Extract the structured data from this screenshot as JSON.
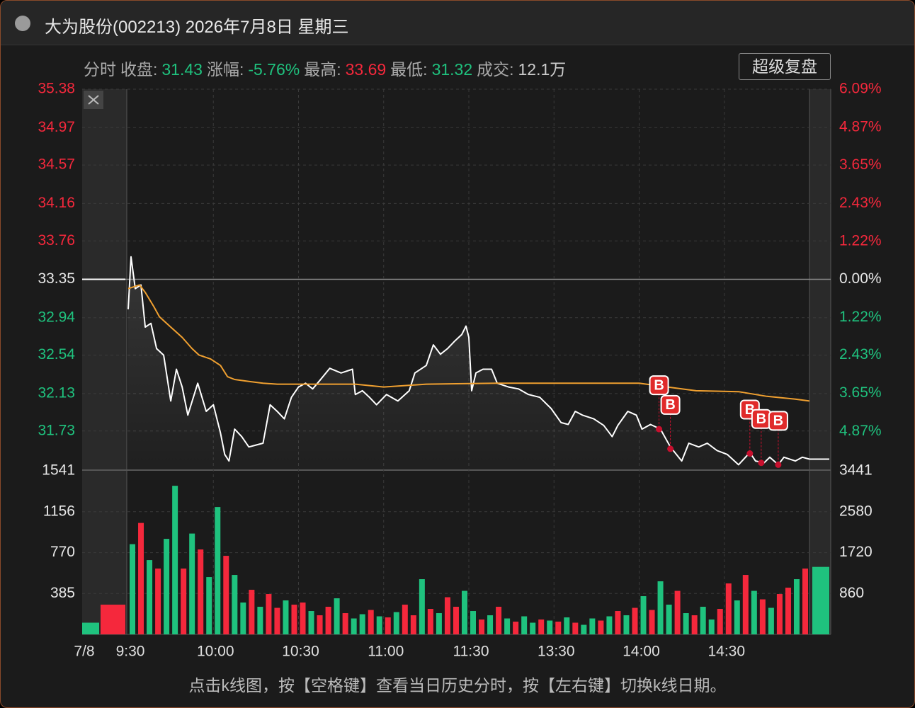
{
  "window": {
    "title": "大为股份(002213) 2026年7月8日 星期三",
    "button": "超级复盘",
    "footer": "点击k线图，按【空格键】查看当日历史分时，按【左右键】切换k线日期。",
    "info": [
      {
        "label": "分时"
      },
      {
        "label": "收盘:",
        "value": "31.43",
        "color": "#1fc27e"
      },
      {
        "label": "涨幅:",
        "value": "-5.76%",
        "color": "#1fc27e"
      },
      {
        "label": "最高:",
        "value": "33.69",
        "color": "#f5283c"
      },
      {
        "label": "最低:",
        "value": "31.32",
        "color": "#1fc27e"
      },
      {
        "label": "成交:",
        "value": "12.1万",
        "color": "#cccccc"
      }
    ]
  },
  "chart_data": {
    "type": "line",
    "date_label": "7/8",
    "prev_close": 33.35,
    "xlim": [
      0,
      240
    ],
    "xticks": [
      {
        "value": 0,
        "label": "9:30"
      },
      {
        "value": 30,
        "label": "10:00"
      },
      {
        "value": 60,
        "label": "10:30"
      },
      {
        "value": 90,
        "label": "11:00"
      },
      {
        "value": 120,
        "label": "11:30"
      },
      {
        "value": 150,
        "label": "13:30"
      },
      {
        "value": 180,
        "label": "14:00"
      },
      {
        "value": 210,
        "label": "14:30"
      }
    ],
    "ylim": [
      31.32,
      35.38
    ],
    "yticks": [
      35.38,
      34.97,
      34.57,
      34.16,
      33.76,
      33.35,
      32.94,
      32.54,
      32.13,
      31.73
    ],
    "y2lim": [
      -6.09,
      6.09
    ],
    "y2ticks": [
      {
        "value": 6.09,
        "label": "6.09%"
      },
      {
        "value": 4.87,
        "label": "4.87%"
      },
      {
        "value": 3.65,
        "label": "3.65%"
      },
      {
        "value": 2.43,
        "label": "2.43%"
      },
      {
        "value": 1.22,
        "label": "1.22%"
      },
      {
        "value": 0,
        "label": "0.00%"
      },
      {
        "value": -1.22,
        "label": "1.22%"
      },
      {
        "value": -2.43,
        "label": "2.43%"
      },
      {
        "value": -3.65,
        "label": "3.65%"
      },
      {
        "value": -4.87,
        "label": "4.87%"
      }
    ],
    "grid": true,
    "series": [
      {
        "color": "#ffffff",
        "x": [
          0,
          1,
          2.5,
          4.5,
          6,
          8,
          10,
          12.5,
          15,
          17,
          19,
          21,
          24.5,
          27.5,
          30,
          32.5,
          34,
          35.5,
          37.5,
          40,
          42.5,
          45,
          47.5,
          50,
          52.5,
          55,
          57.5,
          60,
          62.5,
          65,
          67.5,
          71,
          75,
          79,
          80,
          82.5,
          85,
          87.5,
          91,
          95,
          99,
          101,
          105,
          107.5,
          110,
          112.5,
          115,
          117.5,
          119,
          120,
          121,
          122.5,
          125,
          128,
          130,
          134,
          137.5,
          141,
          145,
          149,
          152.5,
          155,
          157.5,
          160,
          164,
          167.5,
          170.5,
          172.5,
          176,
          179,
          181,
          184,
          187.5,
          191,
          195,
          197.5,
          201,
          204,
          207.5,
          211,
          215,
          219,
          221,
          224,
          226,
          229,
          231,
          235,
          237.5,
          240
        ],
        "values": [
          33.03,
          33.59,
          33.25,
          33.29,
          32.84,
          32.88,
          32.61,
          32.54,
          32.05,
          32.39,
          32.2,
          31.9,
          32.24,
          31.94,
          32.01,
          31.71,
          31.48,
          31.41,
          31.75,
          31.67,
          31.56,
          31.58,
          31.6,
          32.01,
          31.94,
          31.86,
          32.09,
          32.2,
          32.24,
          32.18,
          32.27,
          32.4,
          32.35,
          32.39,
          32.12,
          32.16,
          32.09,
          32.01,
          32.12,
          32.05,
          32.16,
          32.35,
          32.43,
          32.65,
          32.55,
          32.61,
          32.69,
          32.76,
          32.85,
          32.73,
          32.16,
          32.35,
          32.39,
          32.39,
          32.24,
          32.2,
          32.18,
          32.12,
          32.09,
          31.97,
          31.82,
          31.8,
          31.94,
          31.9,
          31.86,
          31.79,
          31.67,
          31.79,
          31.94,
          31.9,
          31.75,
          31.8,
          31.75,
          31.56,
          31.41,
          31.6,
          31.56,
          31.6,
          31.52,
          31.48,
          31.37,
          31.5,
          31.41,
          31.39,
          31.45,
          31.37,
          31.45,
          31.41,
          31.45,
          31.43
        ]
      },
      {
        "color": "#f0a030",
        "x": [
          0,
          4,
          6,
          9,
          11,
          15,
          19,
          22.5,
          25,
          29,
          32.5,
          35,
          37.5,
          42.5,
          47.5,
          52.5,
          80,
          90,
          105,
          130,
          180,
          190,
          200,
          215,
          225,
          235,
          240
        ],
        "values": [
          33.25,
          33.29,
          33.21,
          33.06,
          32.95,
          32.84,
          32.73,
          32.61,
          32.54,
          32.5,
          32.43,
          32.31,
          32.28,
          32.26,
          32.24,
          32.23,
          32.23,
          32.2,
          32.23,
          32.24,
          32.24,
          32.2,
          32.16,
          32.15,
          32.1,
          32.07,
          32.05
        ]
      }
    ],
    "markers": [
      {
        "label": "B",
        "x": 187,
        "value": 31.75
      },
      {
        "label": "B",
        "x": 191,
        "value": 31.54
      },
      {
        "label": "B",
        "x": 219,
        "value": 31.49
      },
      {
        "label": "B",
        "x": 223,
        "value": 31.39
      },
      {
        "label": "B",
        "x": 229,
        "value": 31.37
      }
    ],
    "volume": {
      "ylim": [
        0,
        1541
      ],
      "yticks": [
        1541,
        1156,
        770,
        385
      ],
      "y2lim": [
        0,
        3441
      ],
      "y2ticks": [
        3441,
        2580,
        1720,
        860
      ],
      "pre_values": [
        110,
        280
      ],
      "pre_up": [
        false,
        true
      ],
      "post_value": 1420,
      "post_up": false,
      "values": [
        850,
        1050,
        700,
        620,
        900,
        1400,
        620,
        950,
        800,
        540,
        1200,
        740,
        560,
        300,
        420,
        260,
        380,
        250,
        320,
        280,
        300,
        220,
        180,
        260,
        340,
        200,
        150,
        190,
        230,
        170,
        160,
        210,
        280,
        180,
        520,
        240,
        200,
        350,
        260,
        410,
        220,
        140,
        180,
        260,
        150,
        120,
        170,
        110,
        140,
        130,
        120,
        160,
        110,
        90,
        150,
        130,
        170,
        220,
        180,
        250,
        360,
        230,
        500,
        280,
        410,
        200,
        180,
        260,
        140,
        240,
        480,
        320,
        560,
        410,
        330,
        250,
        380,
        440,
        520,
        620
      ],
      "up": [
        false,
        true,
        false,
        true,
        false,
        false,
        true,
        false,
        true,
        false,
        false,
        true,
        false,
        false,
        true,
        false,
        true,
        true,
        false,
        true,
        true,
        false,
        true,
        true,
        false,
        true,
        false,
        false,
        true,
        false,
        true,
        false,
        true,
        true,
        false,
        true,
        false,
        true,
        true,
        false,
        false,
        true,
        false,
        true,
        false,
        true,
        false,
        false,
        true,
        false,
        true,
        false,
        true,
        false,
        false,
        true,
        false,
        true,
        false,
        true,
        false,
        true,
        false,
        false,
        true,
        false,
        true,
        false,
        false,
        true,
        true,
        false,
        true,
        false,
        true,
        false,
        true,
        true,
        false,
        true
      ]
    }
  }
}
